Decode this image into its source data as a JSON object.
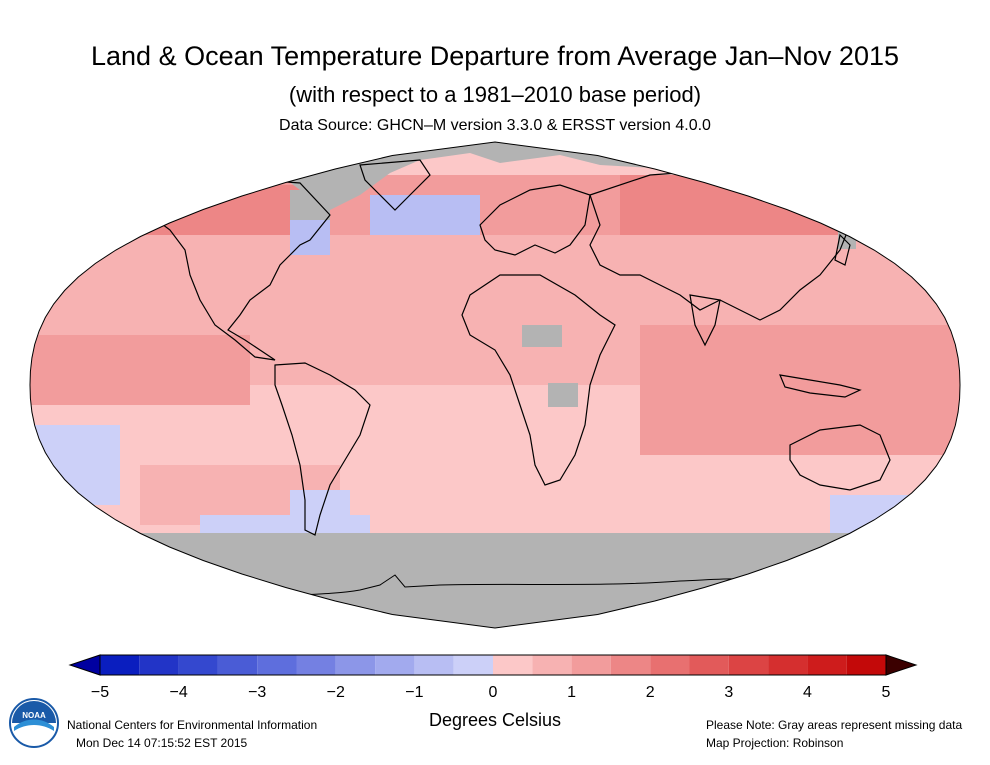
{
  "title": "Land & Ocean Temperature Departure from Average Jan–Nov 2015",
  "subtitle": "(with respect to a 1981–2010 base period)",
  "source": "Data Source: GHCN–M version 3.3.0 & ERSST version 4.0.0",
  "legend": {
    "units": "Degrees Celsius",
    "ticks": [
      "−5",
      "−4",
      "−3",
      "−2",
      "−1",
      "0",
      "1",
      "2",
      "3",
      "4",
      "5"
    ],
    "colors": [
      "#0a1ebf",
      "#2234c7",
      "#3448cf",
      "#4a5cd6",
      "#5e6edd",
      "#7480e2",
      "#8c96e8",
      "#a2aaee",
      "#b8bef3",
      "#ccd0f8",
      "#fcc8c8",
      "#f7b2b2",
      "#f29c9c",
      "#ed8686",
      "#e87070",
      "#e25a5a",
      "#dc4444",
      "#d52f2f",
      "#ce1c1c",
      "#c30909"
    ],
    "under_color": "#0000a0",
    "over_color": "#3b0000"
  },
  "map": {
    "projection": "Robinson",
    "ocean_base_color": "#fcc8c8",
    "missing_color": "#b3b3b3",
    "coastline_color": "#000000"
  },
  "footer": {
    "org": "National Centers for Environmental Information",
    "timestamp": "Mon Dec 14 07:15:52 EST 2015",
    "note": "Please Note: Gray areas represent missing data",
    "projection_note": "Map Projection: Robinson"
  },
  "logo": {
    "text": "NOAA",
    "icon": "noaa-logo-icon"
  }
}
